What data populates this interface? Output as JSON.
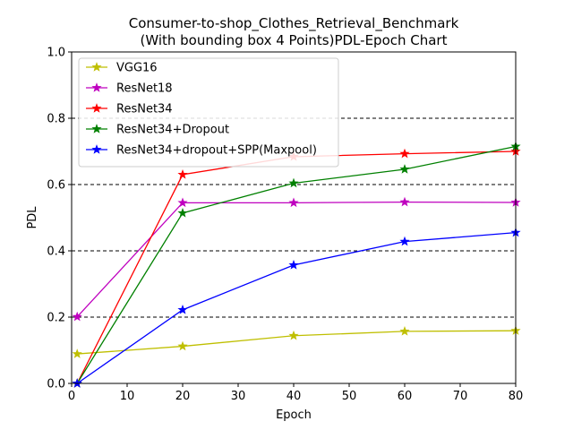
{
  "chart_data": {
    "type": "line",
    "title": "Consumer-to-shop_Clothes_Retrieval_Benchmark",
    "subtitle": "(With bounding box 4 Points)PDL-Epoch Chart",
    "xlabel": "Epoch",
    "ylabel": "PDL",
    "xlim": [
      0,
      80
    ],
    "ylim": [
      0,
      1.0
    ],
    "xticks": [
      "0",
      "10",
      "20",
      "30",
      "40",
      "50",
      "60",
      "70",
      "80"
    ],
    "yticks": [
      "0.0",
      "0.2",
      "0.4",
      "0.6",
      "0.8",
      "1.0"
    ],
    "grid": "horizontal dashed at 0.2, 0.4, 0.6, 0.8",
    "legend_position": "top-left",
    "x": [
      1,
      20,
      40,
      60,
      80
    ],
    "series": [
      {
        "name": "VGG16",
        "color": "#bfbf00",
        "values": [
          0.089,
          0.112,
          0.144,
          0.157,
          0.159
        ]
      },
      {
        "name": "ResNet18",
        "color": "#bf00bf",
        "values": [
          0.201,
          0.545,
          0.545,
          0.547,
          0.546
        ]
      },
      {
        "name": "ResNet34",
        "color": "#ff0000",
        "values": [
          0.0,
          0.63,
          0.684,
          0.693,
          0.7
        ]
      },
      {
        "name": "ResNet34+Dropout",
        "color": "#008000",
        "values": [
          0.0,
          0.514,
          0.604,
          0.646,
          0.715
        ]
      },
      {
        "name": "ResNet34+dropout+SPP(Maxpool)",
        "color": "#0000ff",
        "values": [
          0.0,
          0.222,
          0.357,
          0.428,
          0.455
        ]
      }
    ]
  }
}
